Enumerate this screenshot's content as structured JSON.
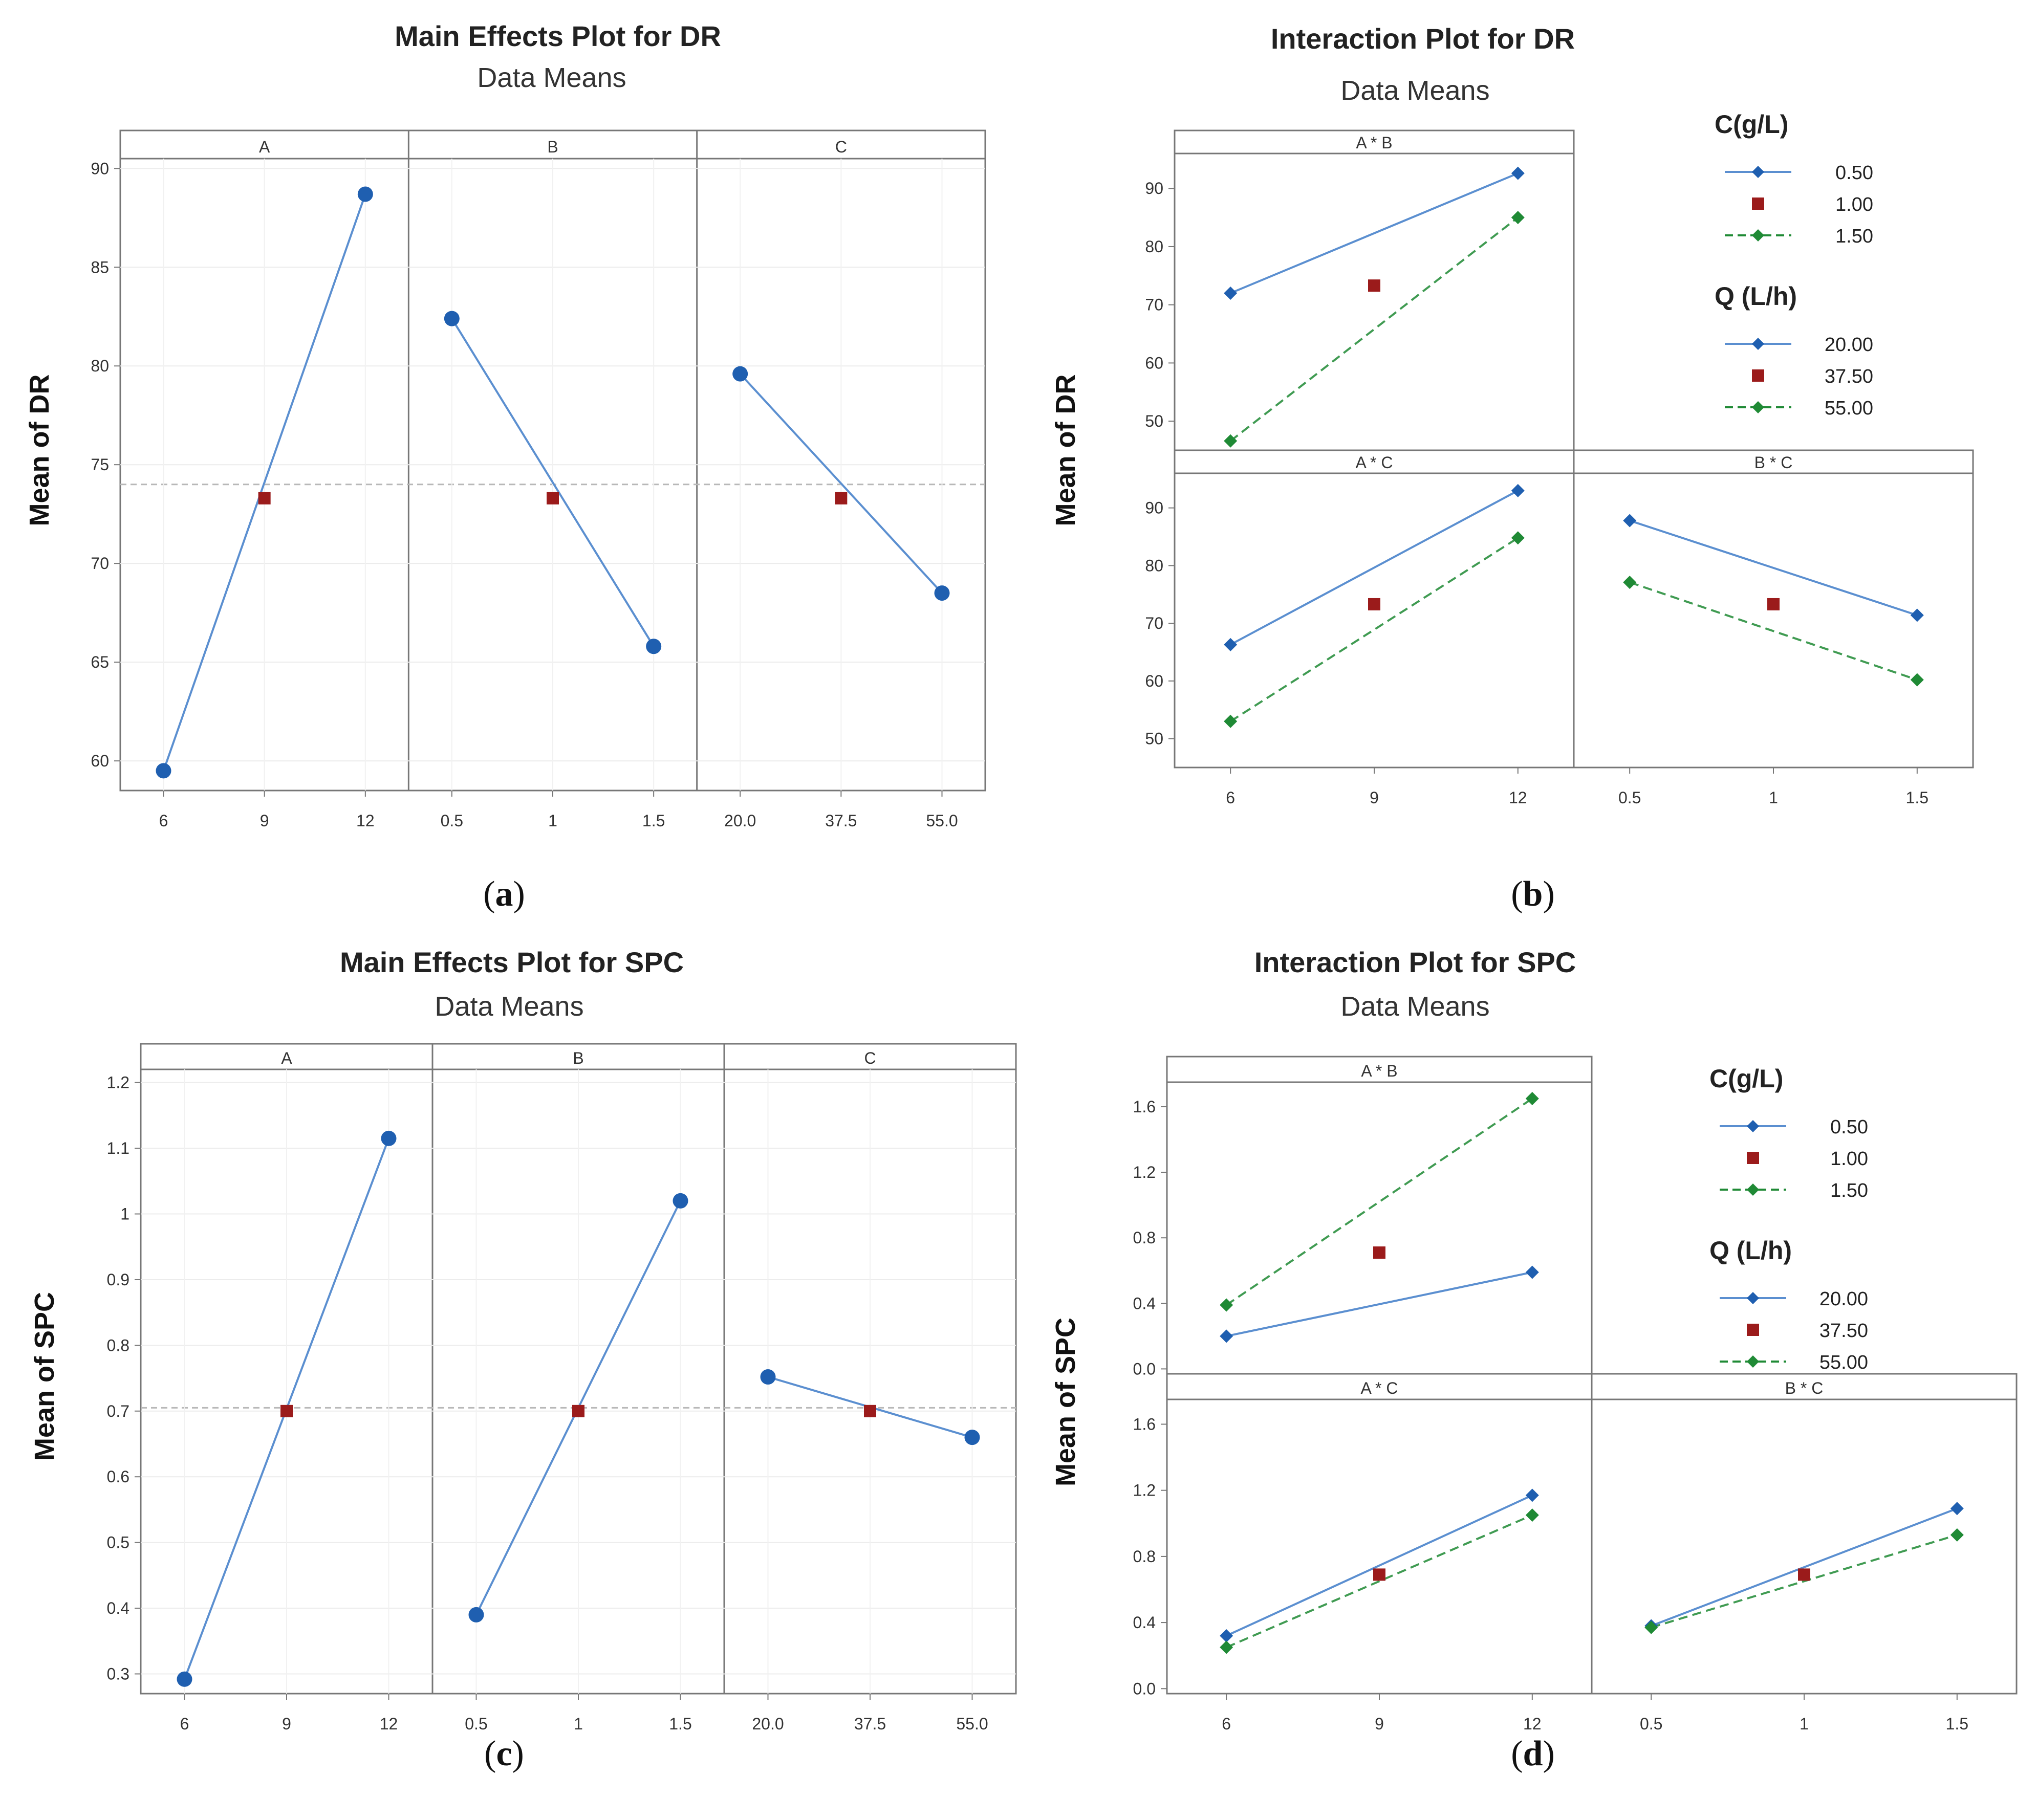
{
  "colors": {
    "blue": "#1f5fb0",
    "line_blue": "#5b8fd0",
    "red": "#9b1b1b",
    "green": "#1f8a35",
    "ref": "#b8b8b8",
    "frame": "#777777"
  },
  "captions": {
    "a": "a",
    "b": "b",
    "c": "c",
    "d": "d"
  },
  "chart_data": [
    {
      "id": "a",
      "type": "line",
      "title": "Main Effects Plot for DR",
      "subtitle": "Data Means",
      "ylabel": "Mean of DR",
      "ylim": [
        58.5,
        90.5
      ],
      "yticks": [
        "60",
        "65",
        "70",
        "75",
        "80",
        "85",
        "90"
      ],
      "reference_mean": 74.0,
      "panels": [
        {
          "label": "A",
          "x": [
            "6",
            "9",
            "12"
          ],
          "values": [
            59.5,
            73.3,
            88.7
          ]
        },
        {
          "label": "B",
          "x": [
            "0.5",
            "1",
            "1.5"
          ],
          "values": [
            82.4,
            73.3,
            65.8
          ]
        },
        {
          "label": "C",
          "x": [
            "20.0",
            "37.5",
            "55.0"
          ],
          "values": [
            79.6,
            73.3,
            68.5
          ]
        }
      ]
    },
    {
      "id": "b",
      "type": "line",
      "title": "Interaction Plot for DR",
      "subtitle": "Data Means",
      "ylabel": "Mean of DR",
      "ylim": [
        45,
        96
      ],
      "yticks": [
        "50",
        "60",
        "70",
        "80",
        "90"
      ],
      "bottom_x": {
        "left": [
          "6",
          "9",
          "12"
        ],
        "right": [
          "0.5",
          "1",
          "1.5"
        ]
      },
      "legend": [
        {
          "title": "C(g/L)",
          "items": [
            "0.50",
            "1.00",
            "1.50"
          ]
        },
        {
          "title": "Q (L/h)",
          "items": [
            "20.00",
            "37.50",
            "55.00"
          ]
        }
      ],
      "panels": [
        {
          "label": "A * B",
          "series": [
            [
              72.0,
              null,
              92.6
            ],
            [
              null,
              73.3,
              null
            ],
            [
              46.6,
              null,
              85.0
            ]
          ]
        },
        {
          "label": "A * C",
          "series": [
            [
              66.3,
              null,
              93.0
            ],
            [
              null,
              73.3,
              null
            ],
            [
              53.0,
              null,
              84.8
            ]
          ]
        },
        {
          "label": "B * C",
          "series": [
            [
              87.8,
              null,
              71.4
            ],
            [
              null,
              73.3,
              null
            ],
            [
              77.1,
              null,
              60.2
            ]
          ]
        }
      ]
    },
    {
      "id": "c",
      "type": "line",
      "title": "Main Effects Plot for SPC",
      "subtitle": "Data Means",
      "ylabel": "Mean of SPC",
      "ylim": [
        0.27,
        1.22
      ],
      "yticks": [
        "0.3",
        "0.4",
        "0.5",
        "0.6",
        "0.7",
        "0.8",
        "0.9",
        "1",
        "1.1",
        "1.2"
      ],
      "reference_mean": 0.705,
      "panels": [
        {
          "label": "A",
          "x": [
            "6",
            "9",
            "12"
          ],
          "values": [
            0.292,
            0.7,
            1.115
          ]
        },
        {
          "label": "B",
          "x": [
            "0.5",
            "1",
            "1.5"
          ],
          "values": [
            0.39,
            0.7,
            1.02
          ]
        },
        {
          "label": "C",
          "x": [
            "20.0",
            "37.5",
            "55.0"
          ],
          "values": [
            0.752,
            0.7,
            0.66
          ]
        }
      ]
    },
    {
      "id": "d",
      "type": "line",
      "title": "Interaction Plot for SPC",
      "subtitle": "Data Means",
      "ylabel": "Mean of SPC",
      "ylim": [
        -0.03,
        1.75
      ],
      "yticks": [
        "0.0",
        "0.4",
        "0.8",
        "1.2",
        "1.6"
      ],
      "bottom_x": {
        "left": [
          "6",
          "9",
          "12"
        ],
        "right": [
          "0.5",
          "1",
          "1.5"
        ]
      },
      "legend": [
        {
          "title": "C(g/L)",
          "items": [
            "0.50",
            "1.00",
            "1.50"
          ]
        },
        {
          "title": "Q (L/h)",
          "items": [
            "20.00",
            "37.50",
            "55.00"
          ]
        }
      ],
      "panels": [
        {
          "label": "A * B",
          "series": [
            [
              0.2,
              null,
              0.59
            ],
            [
              null,
              0.71,
              null
            ],
            [
              0.39,
              null,
              1.65
            ]
          ]
        },
        {
          "label": "A * C",
          "series": [
            [
              0.32,
              null,
              1.17
            ],
            [
              null,
              0.69,
              null
            ],
            [
              0.25,
              null,
              1.05
            ]
          ]
        },
        {
          "label": "B * C",
          "series": [
            [
              0.38,
              null,
              1.09
            ],
            [
              null,
              0.69,
              null
            ],
            [
              0.37,
              null,
              0.93
            ]
          ]
        }
      ]
    }
  ]
}
